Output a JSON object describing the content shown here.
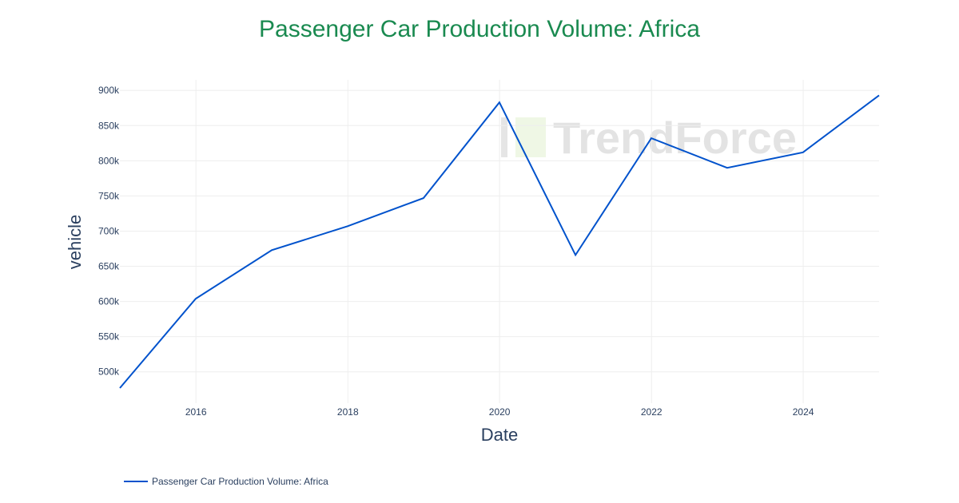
{
  "chart_data": {
    "type": "line",
    "title": "Passenger Car Production Volume: Africa",
    "xlabel": "Date",
    "ylabel": "vehicle",
    "x": [
      "2014-12-31",
      "2015-12-31",
      "2016-12-31",
      "2017-12-31",
      "2018-12-31",
      "2019-12-31",
      "2020-12-31",
      "2021-12-31",
      "2022-12-31",
      "2023-12-31",
      "2024-12-31"
    ],
    "series": [
      {
        "name": "Passenger Car Production Volume: Africa",
        "color": "#0052cc",
        "values": [
          477000,
          604000,
          673000,
          707000,
          747000,
          883000,
          666000,
          832000,
          790000,
          812000,
          893000
        ]
      }
    ],
    "xticks": [
      "2016",
      "2018",
      "2020",
      "2022",
      "2024"
    ],
    "yticks": [
      "500k",
      "550k",
      "600k",
      "650k",
      "700k",
      "750k",
      "800k",
      "850k",
      "900k"
    ],
    "ylim": [
      477000,
      915000
    ],
    "grid": true,
    "legend": "bottom-left",
    "watermark": "TrendForce"
  }
}
